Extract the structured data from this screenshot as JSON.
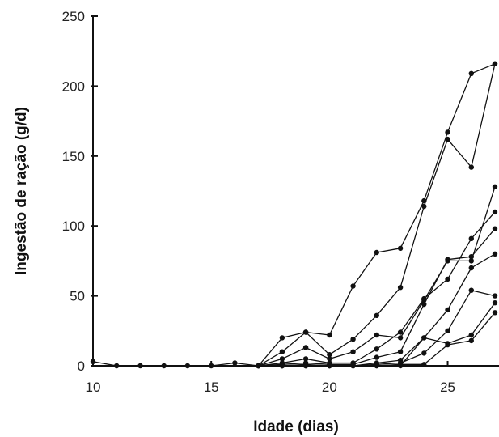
{
  "chart_data": {
    "type": "line",
    "title": "",
    "xlabel": "Idade (dias)",
    "ylabel": "Ingestão de ração (g/d)",
    "xlim": [
      10,
      27
    ],
    "ylim": [
      0,
      250
    ],
    "xticks": [
      10,
      15,
      20,
      25
    ],
    "yticks": [
      0,
      50,
      100,
      150,
      200,
      250
    ],
    "grid": false,
    "legend": "none",
    "series": [
      {
        "x": [
          10,
          11,
          12,
          13,
          14,
          15,
          16,
          17,
          18,
          19,
          20,
          21,
          22,
          23,
          24,
          25,
          26,
          27
        ],
        "y": [
          3,
          0,
          0,
          0,
          0,
          0,
          2,
          0,
          20,
          24,
          22,
          57,
          81,
          84,
          118,
          167,
          209,
          216
        ]
      },
      {
        "x": [
          17,
          18,
          19,
          20,
          21,
          22,
          23,
          24,
          25,
          26,
          27
        ],
        "y": [
          0,
          10,
          24,
          8,
          19,
          36,
          56,
          114,
          162,
          142,
          216
        ]
      },
      {
        "x": [
          17,
          18,
          19,
          20,
          21,
          22,
          23,
          24,
          25,
          26,
          27
        ],
        "y": [
          0,
          5,
          13,
          5,
          10,
          22,
          20,
          47,
          75,
          75,
          128
        ]
      },
      {
        "x": [
          17,
          18,
          19,
          20,
          21,
          22,
          23,
          24,
          25,
          26,
          27
        ],
        "y": [
          0,
          2,
          5,
          2,
          2,
          12,
          24,
          48,
          62,
          91,
          110
        ]
      },
      {
        "x": [
          17,
          18,
          19,
          20,
          21,
          22,
          23,
          24,
          25,
          26,
          27
        ],
        "y": [
          0,
          1,
          2,
          1,
          1,
          6,
          10,
          44,
          76,
          78,
          98
        ]
      },
      {
        "x": [
          17,
          18,
          19,
          20,
          21,
          22,
          23,
          24,
          25,
          26,
          27
        ],
        "y": [
          0,
          0,
          1,
          0,
          0,
          2,
          4,
          20,
          40,
          70,
          80
        ]
      },
      {
        "x": [
          17,
          18,
          19,
          20,
          21,
          22,
          23,
          24,
          25,
          26,
          27
        ],
        "y": [
          0,
          0,
          0,
          0,
          0,
          1,
          2,
          9,
          25,
          54,
          50
        ]
      },
      {
        "x": [
          17,
          18,
          19,
          20,
          21,
          22,
          23,
          24,
          25,
          26,
          27
        ],
        "y": [
          0,
          0,
          0,
          0,
          0,
          0,
          0,
          20,
          16,
          22,
          45
        ]
      },
      {
        "x": [
          17,
          18,
          19,
          20,
          21,
          22,
          23,
          24,
          25,
          26,
          27
        ],
        "y": [
          0,
          0,
          0,
          0,
          0,
          0,
          1,
          1,
          15,
          18,
          38
        ]
      }
    ]
  }
}
